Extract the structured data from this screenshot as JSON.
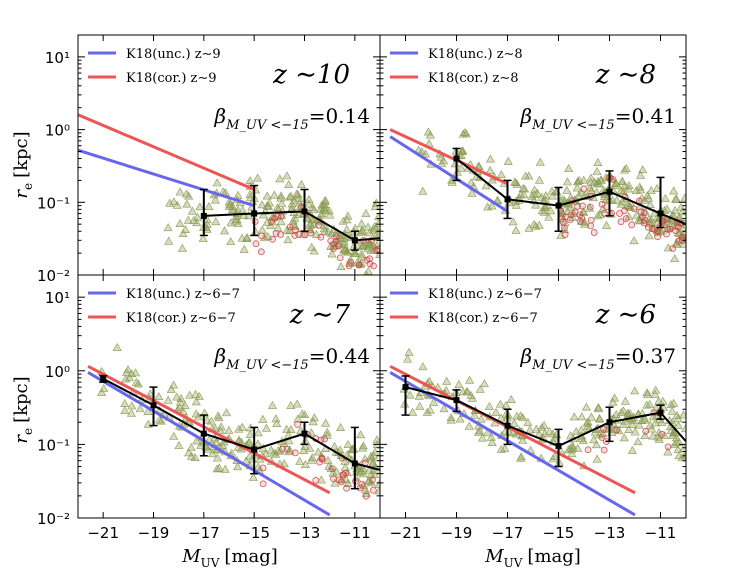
{
  "colors": {
    "uncorrected": "#6666ee",
    "corrected": "#ee5555",
    "triangle": "#8a9a50",
    "circle": "#cc4444",
    "median": "#000000"
  },
  "axes": {
    "xlabel": "M",
    "xlabel_sub": "UV",
    "xlabel_unit": "[mag]",
    "ylabel": "r",
    "ylabel_sub": "e",
    "ylabel_unit": "[kpc]"
  },
  "chart_data": [
    {
      "type": "line",
      "panel": "top-left",
      "redshift_label": "z ∼10",
      "beta_label": {
        "symbol": "β",
        "subscript": "M_UV <−15",
        "value": "=0.14"
      },
      "xlim": [
        -22,
        -10
      ],
      "ylim": [
        0.01,
        20
      ],
      "yscale": "log",
      "xticks": [
        "−21",
        "−19",
        "−17",
        "−15",
        "−13",
        "−11"
      ],
      "yticks": [
        "10⁻²",
        "10⁻¹",
        "10⁰",
        "10¹"
      ],
      "legend": {
        "placement": "top-left",
        "entries": [
          "K18(unc.) z∼9",
          "K18(cor.) z∼9"
        ]
      },
      "series": [
        {
          "name": "K18(unc.) z∼9",
          "x": [
            -22,
            -15
          ],
          "y": [
            0.52,
            0.09
          ]
        },
        {
          "name": "K18(cor.) z∼9",
          "x": [
            -22,
            -15
          ],
          "y": [
            1.6,
            0.15
          ]
        }
      ],
      "median": {
        "x": [
          -17,
          -15,
          -13,
          -11,
          -10
        ],
        "y": [
          0.065,
          0.07,
          0.075,
          0.03,
          0.032
        ],
        "err_low": [
          0.035,
          0.035,
          0.04,
          0.022,
          null
        ],
        "err_high": [
          0.15,
          0.17,
          0.15,
          0.04,
          null
        ]
      }
    },
    {
      "type": "line",
      "panel": "top-right",
      "redshift_label": "z ∼8",
      "beta_label": {
        "symbol": "β",
        "subscript": "M_UV <−15",
        "value": "=0.41"
      },
      "xlim": [
        -22,
        -10
      ],
      "ylim": [
        0.01,
        20
      ],
      "yscale": "log",
      "xticks": [
        "−21",
        "−19",
        "−17",
        "−15",
        "−13",
        "−11"
      ],
      "legend": {
        "placement": "top-left",
        "entries": [
          "K18(unc.) z∼8",
          "K18(cor.) z∼8"
        ]
      },
      "series": [
        {
          "name": "K18(unc.) z∼8",
          "x": [
            -21.6,
            -17
          ],
          "y": [
            0.8,
            0.075
          ]
        },
        {
          "name": "K18(cor.) z∼8",
          "x": [
            -21.6,
            -17
          ],
          "y": [
            1.0,
            0.18
          ]
        }
      ],
      "median": {
        "x": [
          -19,
          -17,
          -15,
          -13,
          -11,
          -10
        ],
        "y": [
          0.4,
          0.11,
          0.09,
          0.14,
          0.07,
          0.05
        ],
        "err_low": [
          0.2,
          0.06,
          0.04,
          0.065,
          0.045,
          null
        ],
        "err_high": [
          0.55,
          0.2,
          0.16,
          0.27,
          0.22,
          null
        ]
      }
    },
    {
      "type": "line",
      "panel": "bottom-left",
      "redshift_label": "z ∼7",
      "beta_label": {
        "symbol": "β",
        "subscript": "M_UV <−15",
        "value": "=0.44"
      },
      "xlim": [
        -22,
        -10
      ],
      "ylim": [
        0.01,
        20
      ],
      "yscale": "log",
      "xticks": [
        "−21",
        "−19",
        "−17",
        "−15",
        "−13",
        "−11"
      ],
      "yticks": [
        "10⁻²",
        "10⁻¹",
        "10⁰",
        "10¹"
      ],
      "legend": {
        "placement": "top-left",
        "entries": [
          "K18(unc.) z∼6−7",
          "K18(cor.) z∼6−7"
        ]
      },
      "series": [
        {
          "name": "K18(unc.) z∼6−7",
          "x": [
            -21.6,
            -12
          ],
          "y": [
            0.95,
            0.011
          ]
        },
        {
          "name": "K18(cor.) z∼6−7",
          "x": [
            -21.6,
            -12
          ],
          "y": [
            1.15,
            0.022
          ]
        }
      ],
      "median": {
        "x": [
          -21,
          -19,
          -17,
          -15,
          -13,
          -11,
          -10
        ],
        "y": [
          0.78,
          0.34,
          0.14,
          0.085,
          0.14,
          0.055,
          0.045
        ],
        "err_low": [
          0.7,
          0.18,
          0.07,
          0.04,
          0.1,
          0.025,
          null
        ],
        "err_high": [
          0.86,
          0.6,
          0.25,
          0.17,
          0.2,
          0.17,
          null
        ]
      }
    },
    {
      "type": "line",
      "panel": "bottom-right",
      "redshift_label": "z ∼6",
      "beta_label": {
        "symbol": "β",
        "subscript": "M_UV <−15",
        "value": "=0.37"
      },
      "xlim": [
        -22,
        -10
      ],
      "ylim": [
        0.01,
        20
      ],
      "yscale": "log",
      "xticks": [
        "−21",
        "−19",
        "−17",
        "−15",
        "−13",
        "−11"
      ],
      "legend": {
        "placement": "top-left",
        "entries": [
          "K18(unc.) z∼6−7",
          "K18(cor.) z∼6−7"
        ]
      },
      "series": [
        {
          "name": "K18(unc.) z∼6−7",
          "x": [
            -21.6,
            -12
          ],
          "y": [
            0.95,
            0.011
          ]
        },
        {
          "name": "K18(cor.) z∼6−7",
          "x": [
            -21.6,
            -12
          ],
          "y": [
            1.15,
            0.022
          ]
        }
      ],
      "median": {
        "x": [
          -21,
          -19,
          -17,
          -15,
          -13,
          -11,
          -10
        ],
        "y": [
          0.6,
          0.4,
          0.18,
          0.095,
          0.2,
          0.27,
          0.11
        ],
        "err_low": [
          0.25,
          0.28,
          0.1,
          0.05,
          0.11,
          0.22,
          null
        ],
        "err_high": [
          0.85,
          0.55,
          0.3,
          0.16,
          0.32,
          0.34,
          null
        ]
      }
    }
  ]
}
